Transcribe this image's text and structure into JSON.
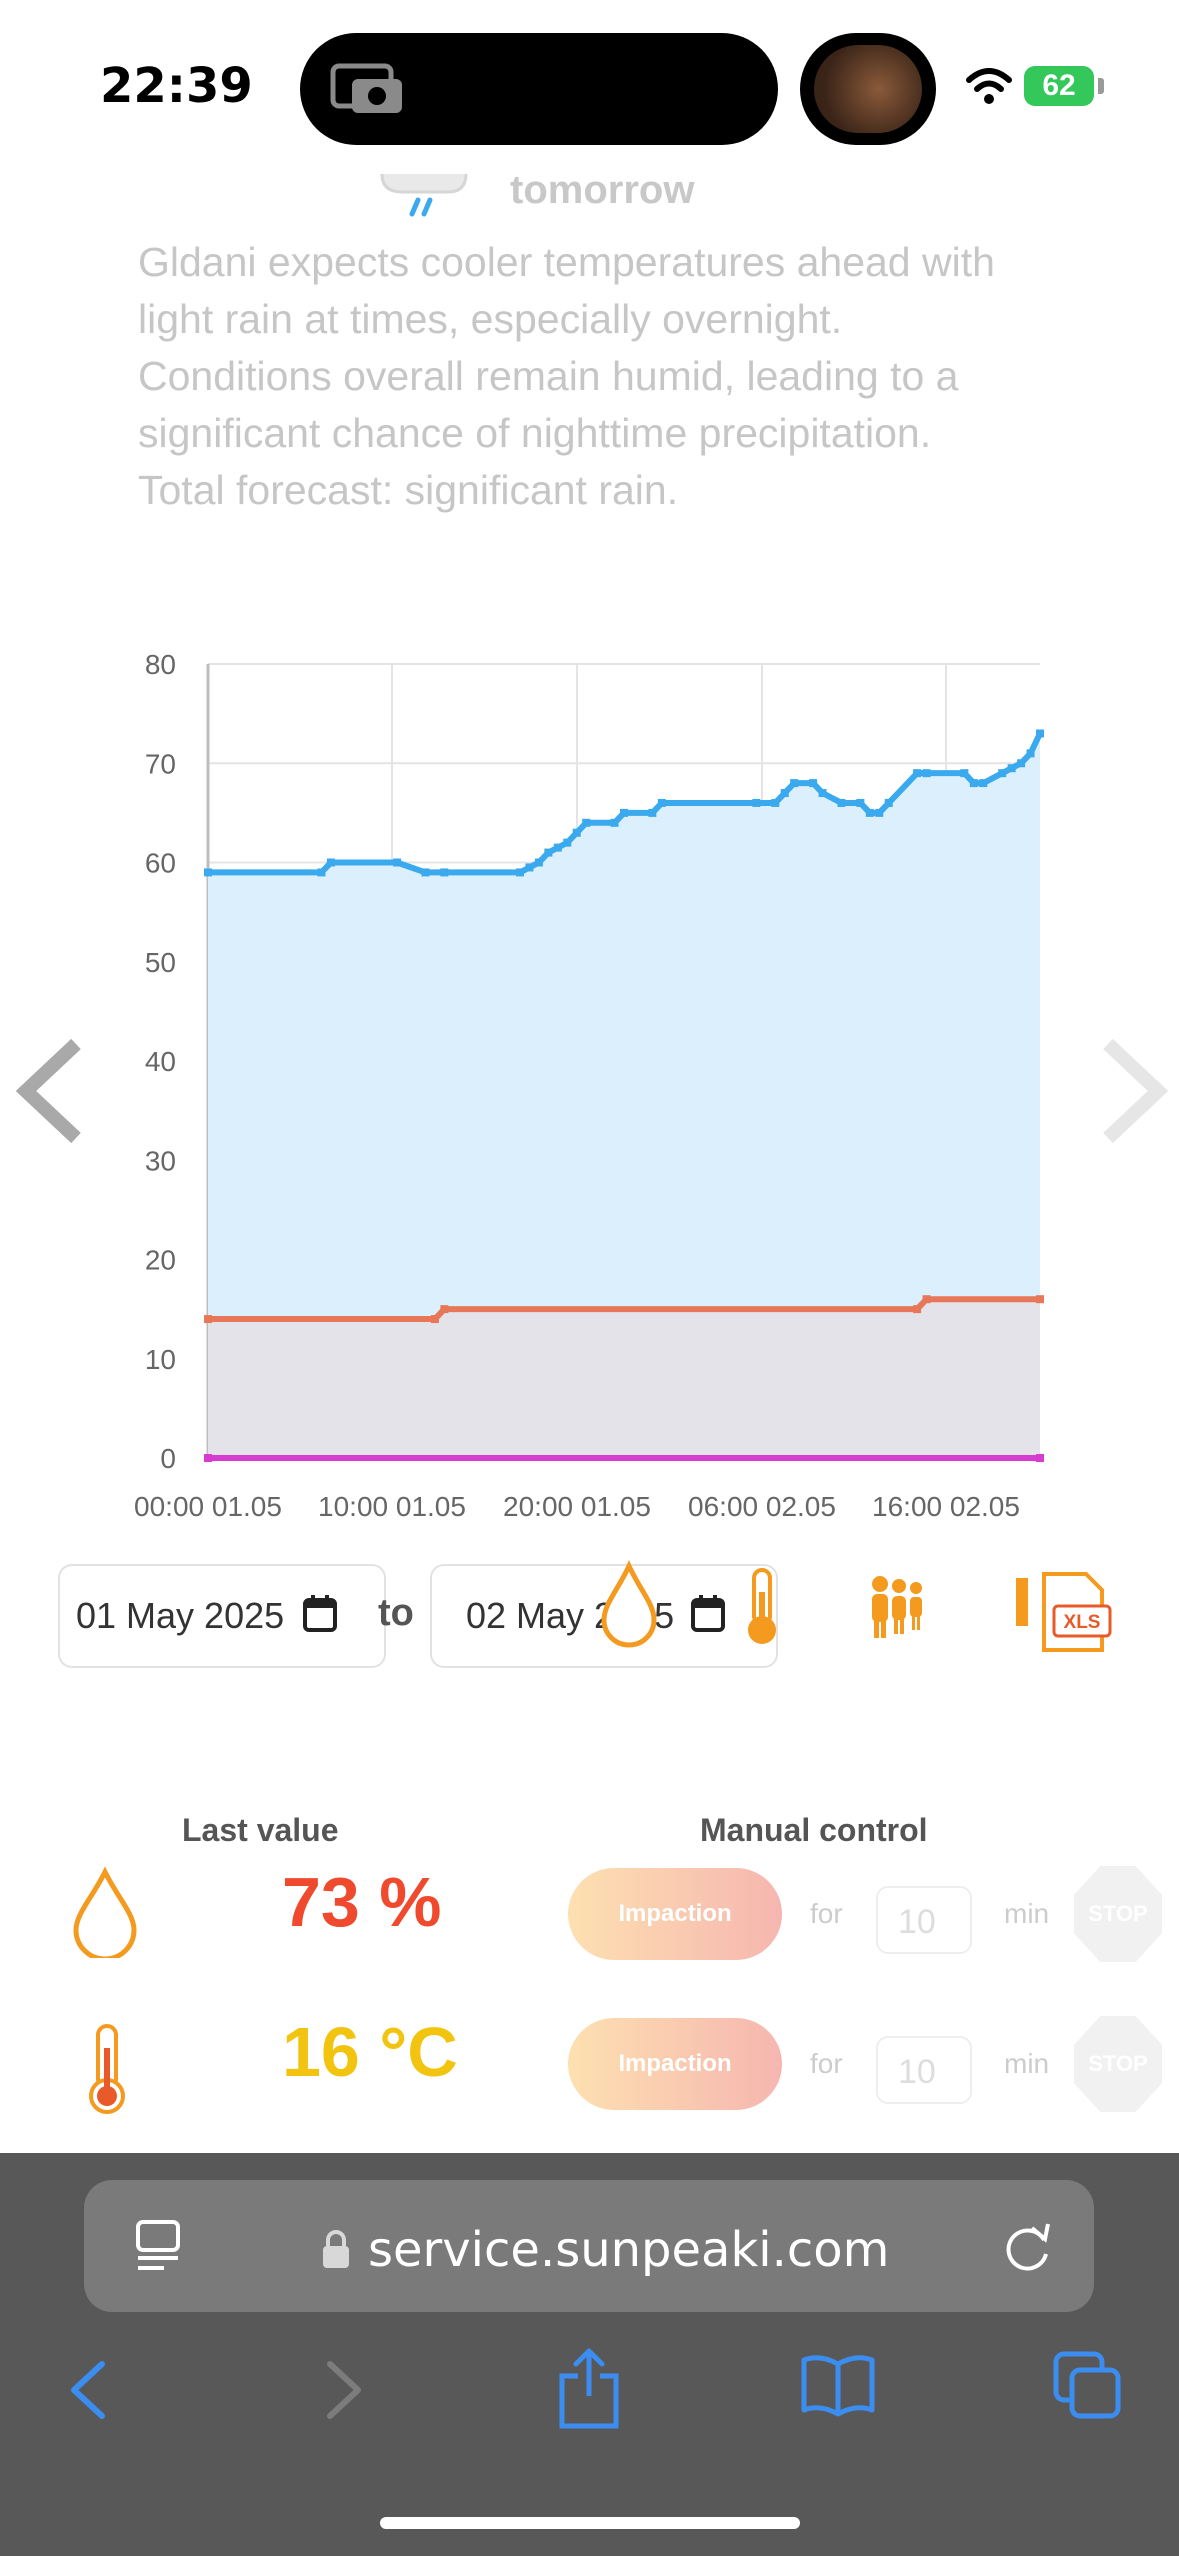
{
  "status_bar": {
    "time": "22:39",
    "battery": "62"
  },
  "forecast": {
    "label": "tomorrow",
    "text": "Gldani expects cooler temperatures ahead with light rain at times, especially overnight. Conditions overall remain humid, leading to a significant chance of nighttime precipitation. Total forecast: significant rain."
  },
  "chart_data": {
    "type": "area",
    "x_tick_labels": [
      "00:00 01.05",
      "10:00 01.05",
      "20:00 01.05",
      "06:00 02.05",
      "16:00 02.05"
    ],
    "y_ticks": [
      0,
      10,
      20,
      30,
      40,
      50,
      60,
      70,
      80
    ],
    "ylim": [
      0,
      80
    ],
    "x_hours": [
      0,
      44
    ],
    "grid": true,
    "series": [
      {
        "color": "#3aa9ee",
        "fill": "#dbf0fc",
        "x": [
          0,
          6,
          6.5,
          10,
          11.5,
          12.5,
          16.5,
          17,
          17.5,
          18,
          18.5,
          19,
          19.5,
          20,
          21.5,
          22,
          23.5,
          24,
          29,
          30,
          30.5,
          31,
          32,
          32.5,
          33.5,
          34.5,
          35,
          35.5,
          36,
          37.5,
          38,
          40,
          40.5,
          41,
          42,
          42.5,
          43,
          43.5,
          44
        ],
        "y": [
          59,
          59,
          60,
          60,
          59,
          59,
          59,
          59.5,
          60,
          61,
          61.5,
          62,
          63,
          64,
          64,
          65,
          65,
          66,
          66,
          66,
          67,
          68,
          68,
          67,
          66,
          66,
          65,
          65,
          66,
          69,
          69,
          69,
          68,
          68,
          69,
          69.5,
          70,
          71,
          73
        ]
      },
      {
        "color": "#e8775a",
        "fill": "#e4e3ea",
        "x": [
          0,
          12,
          12.5,
          37.5,
          38,
          44
        ],
        "y": [
          14,
          14,
          15,
          15,
          16,
          16
        ]
      },
      {
        "color": "#d63ccf",
        "x": [
          0,
          44
        ],
        "y": [
          0,
          0
        ]
      }
    ]
  },
  "date_range": {
    "from": "01 May 2025",
    "to_word": "to",
    "to": "02 May 2025"
  },
  "last_value": {
    "title": "Last value",
    "humidity": "73 %",
    "humidity_color": "#f04a2e",
    "temperature": "16 °C",
    "temperature_color": "#f2c40f"
  },
  "manual_control": {
    "title": "Manual control",
    "rows": [
      {
        "button": "Impaction",
        "for": "for",
        "value": "10",
        "unit": "min",
        "stop": "STOP"
      },
      {
        "button": "Impaction",
        "for": "for",
        "value": "10",
        "unit": "min",
        "stop": "STOP"
      }
    ]
  },
  "browser": {
    "url": "service.sunpeaki.com"
  },
  "icons": {
    "accent": "#f39a1f",
    "names": [
      "screen-record-icon",
      "wifi-icon",
      "droplet-icon",
      "thermometer-icon",
      "people-icon",
      "xls-export-icon",
      "calendar-icon",
      "lock-icon",
      "reload-icon",
      "back-icon",
      "forward-icon",
      "share-icon",
      "bookmarks-icon",
      "tabs-icon"
    ]
  }
}
